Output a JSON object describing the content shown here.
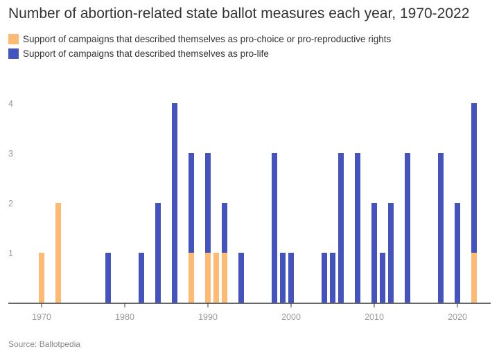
{
  "title": "Number of abortion-related state ballot measures each year, 1970-2022",
  "source": "Source: Ballotpedia",
  "colors": {
    "pro_choice": "#FDBA74",
    "pro_life": "#4553BF",
    "axis": "#333333",
    "tick": "#999999"
  },
  "chart_data": {
    "type": "bar",
    "stacked": true,
    "title": "Number of abortion-related state ballot measures each year, 1970-2022",
    "xlabel": "",
    "ylabel": "",
    "xlim": [
      1968,
      2024
    ],
    "ylim": [
      0,
      4
    ],
    "x_ticks": [
      1970,
      1980,
      1990,
      2000,
      2010,
      2020
    ],
    "y_ticks": [
      1,
      2,
      3,
      4
    ],
    "grid": false,
    "legend_position": "top-left",
    "x": [
      1970,
      1972,
      1978,
      1982,
      1984,
      1986,
      1988,
      1990,
      1991,
      1992,
      1994,
      1998,
      1999,
      2000,
      2004,
      2005,
      2006,
      2008,
      2010,
      2011,
      2012,
      2014,
      2018,
      2020,
      2022
    ],
    "series": [
      {
        "name": "Support of campaigns that described themselves as pro-choice or pro-reproductive rights",
        "color": "#FDBA74",
        "values": [
          1,
          2,
          0,
          0,
          0,
          0,
          1,
          1,
          1,
          1,
          0,
          0,
          0,
          0,
          0,
          0,
          0,
          0,
          0,
          0,
          0,
          0,
          0,
          0,
          1
        ]
      },
      {
        "name": "Support of campaigns that described themselves as pro-life",
        "color": "#4553BF",
        "values": [
          0,
          0,
          1,
          1,
          2,
          4,
          2,
          2,
          0,
          1,
          1,
          3,
          1,
          1,
          1,
          1,
          3,
          3,
          2,
          1,
          2,
          3,
          3,
          2,
          3
        ]
      }
    ]
  }
}
